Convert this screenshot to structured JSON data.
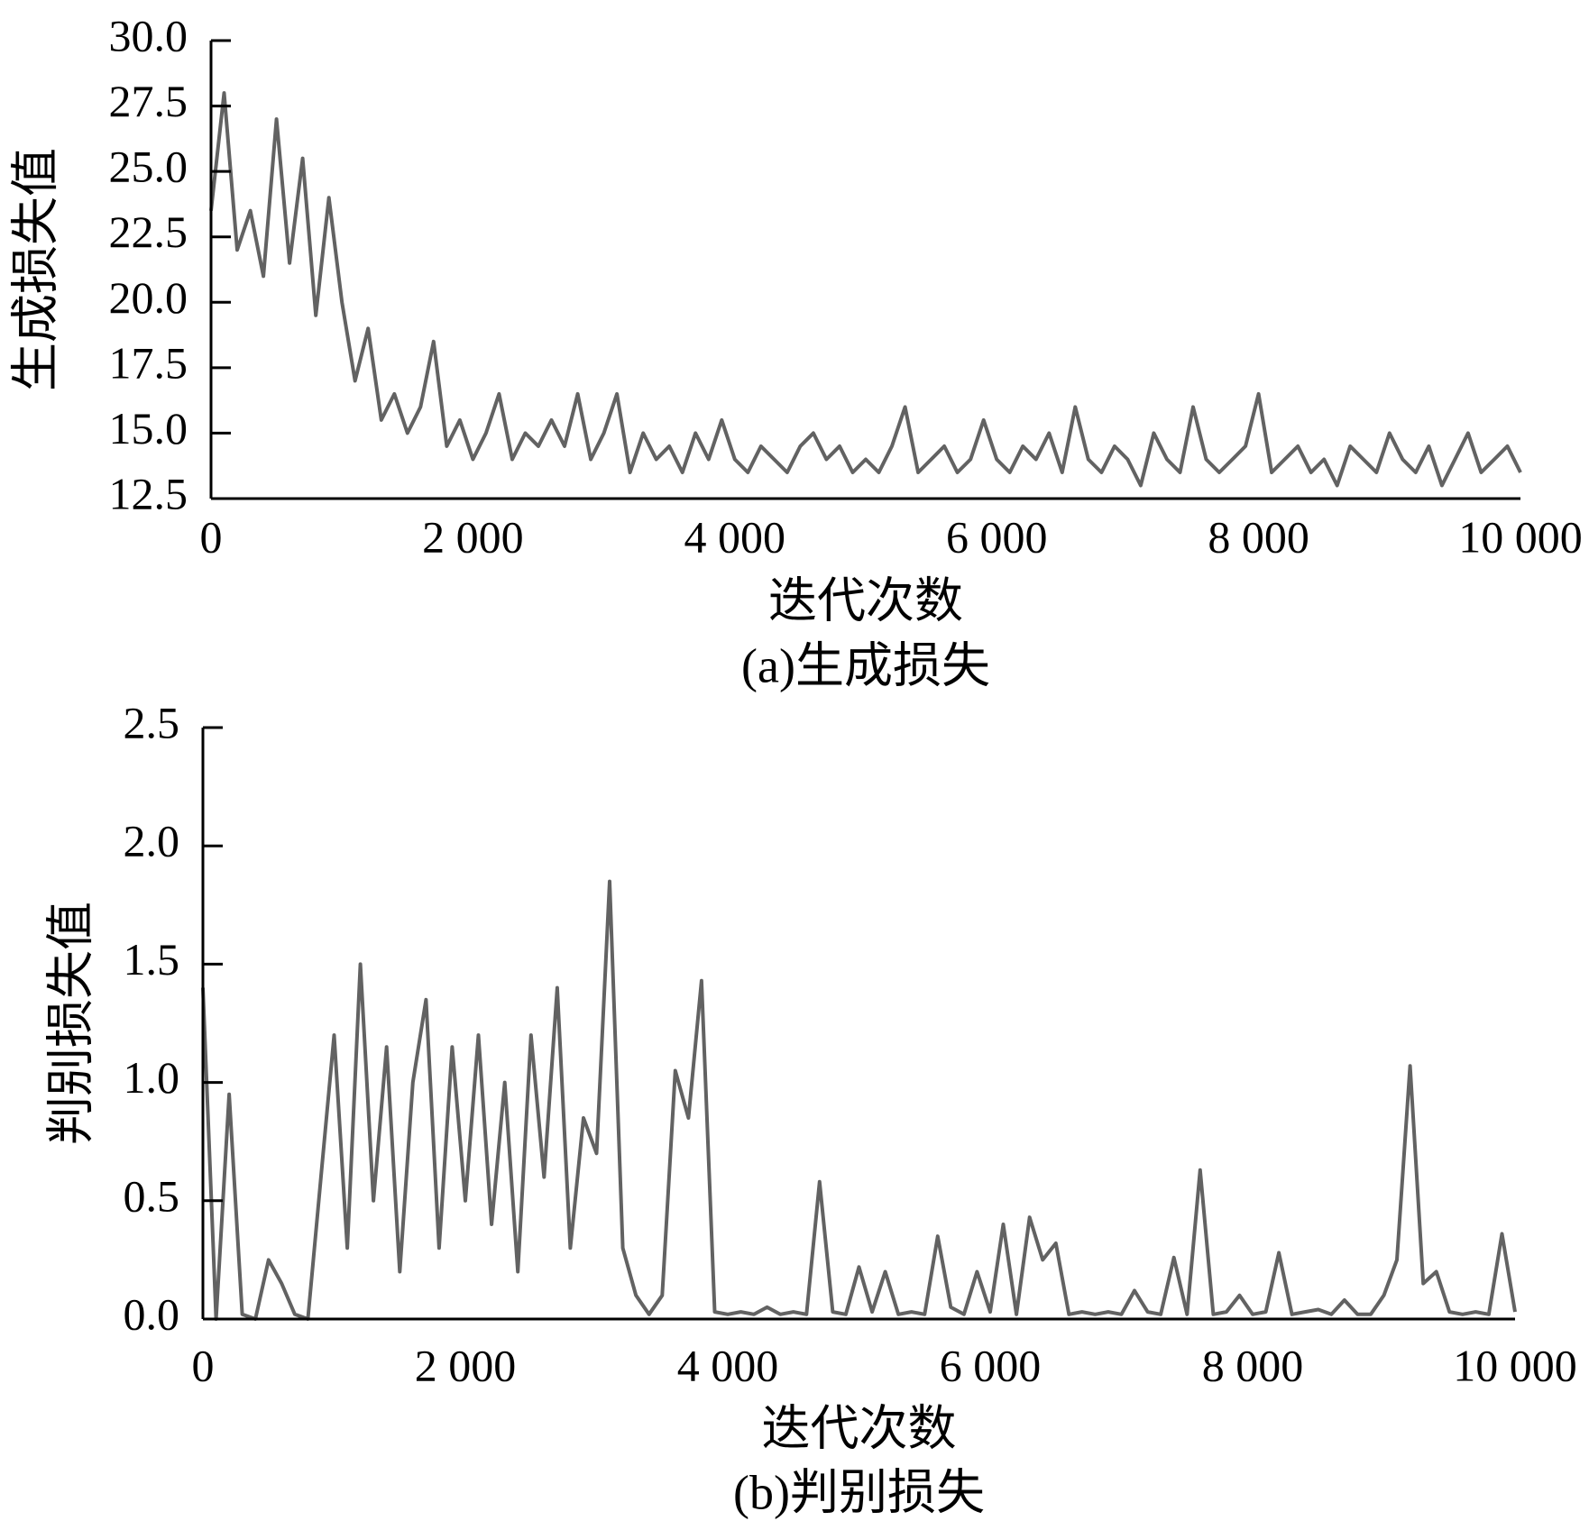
{
  "chart_data": [
    {
      "type": "line",
      "caption": "(a)生成损失",
      "xlabel": "迭代次数",
      "ylabel": "生成损失值",
      "x": [
        0,
        100,
        200,
        300,
        400,
        500,
        600,
        700,
        800,
        900,
        1000,
        1100,
        1200,
        1300,
        1400,
        1500,
        1600,
        1700,
        1800,
        1900,
        2000,
        2100,
        2200,
        2300,
        2400,
        2500,
        2600,
        2700,
        2800,
        2900,
        3000,
        3100,
        3200,
        3300,
        3400,
        3500,
        3600,
        3700,
        3800,
        3900,
        4000,
        4100,
        4200,
        4300,
        4400,
        4500,
        4600,
        4700,
        4800,
        4900,
        5000,
        5100,
        5200,
        5300,
        5400,
        5500,
        5600,
        5700,
        5800,
        5900,
        6000,
        6100,
        6200,
        6300,
        6400,
        6500,
        6600,
        6700,
        6800,
        6900,
        7000,
        7100,
        7200,
        7300,
        7400,
        7500,
        7600,
        7700,
        7800,
        7900,
        8000,
        8100,
        8200,
        8300,
        8400,
        8500,
        8600,
        8700,
        8800,
        8900,
        9000,
        9100,
        9200,
        9300,
        9400,
        9500,
        9600,
        9700,
        9800,
        9900,
        10000
      ],
      "series": [
        {
          "color": "#626262",
          "values": [
            23.5,
            28.0,
            22.0,
            23.5,
            21.0,
            27.0,
            21.5,
            25.5,
            19.5,
            24.0,
            20.0,
            17.0,
            19.0,
            15.5,
            16.5,
            15.0,
            16.0,
            18.5,
            14.5,
            15.5,
            14.0,
            15.0,
            16.5,
            14.0,
            15.0,
            14.5,
            15.5,
            14.5,
            16.5,
            14.0,
            15.0,
            16.5,
            13.5,
            15.0,
            14.0,
            14.5,
            13.5,
            15.0,
            14.0,
            15.5,
            14.0,
            13.5,
            14.5,
            14.0,
            13.5,
            14.5,
            15.0,
            14.0,
            14.5,
            13.5,
            14.0,
            13.5,
            14.5,
            16.0,
            13.5,
            14.0,
            14.5,
            13.5,
            14.0,
            15.5,
            14.0,
            13.5,
            14.5,
            14.0,
            15.0,
            13.5,
            16.0,
            14.0,
            13.5,
            14.5,
            14.0,
            13.0,
            15.0,
            14.0,
            13.5,
            16.0,
            14.0,
            13.5,
            14.0,
            14.5,
            16.5,
            13.5,
            14.0,
            14.5,
            13.5,
            14.0,
            13.0,
            14.5,
            14.0,
            13.5,
            15.0,
            14.0,
            13.5,
            14.5,
            13.0,
            14.0,
            15.0,
            13.5,
            14.0,
            14.5,
            13.5
          ]
        }
      ],
      "xlim": [
        0,
        10000
      ],
      "xticks": [
        0,
        {
          "value": 2000,
          "label": "2 000"
        },
        {
          "value": 4000,
          "label": "4 000"
        },
        {
          "value": 6000,
          "label": "6 000"
        },
        {
          "value": 8000,
          "label": "8 000"
        },
        {
          "value": 10000,
          "label": "10 000"
        }
      ],
      "ylim": [
        12.5,
        30
      ],
      "yticks": [
        12.5,
        {
          "value": 15,
          "label": "15.0"
        },
        17.5,
        {
          "value": 20,
          "label": "20.0"
        },
        22.5,
        {
          "value": 25,
          "label": "25.0"
        },
        27.5,
        {
          "value": 30,
          "label": "30.0"
        }
      ],
      "grid": false
    },
    {
      "type": "line",
      "caption": "(b)判别损失",
      "xlabel": "迭代次数",
      "ylabel": "判别损失值",
      "x": [
        0,
        100,
        200,
        300,
        400,
        500,
        600,
        700,
        800,
        900,
        1000,
        1100,
        1200,
        1300,
        1400,
        1500,
        1600,
        1700,
        1800,
        1900,
        2000,
        2100,
        2200,
        2300,
        2400,
        2500,
        2600,
        2700,
        2800,
        2900,
        3000,
        3100,
        3200,
        3300,
        3400,
        3500,
        3600,
        3700,
        3800,
        3900,
        4000,
        4100,
        4200,
        4300,
        4400,
        4500,
        4600,
        4700,
        4800,
        4900,
        5000,
        5100,
        5200,
        5300,
        5400,
        5500,
        5600,
        5700,
        5800,
        5900,
        6000,
        6100,
        6200,
        6300,
        6400,
        6500,
        6600,
        6700,
        6800,
        6900,
        7000,
        7100,
        7200,
        7300,
        7400,
        7500,
        7600,
        7700,
        7800,
        7900,
        8000,
        8100,
        8200,
        8300,
        8400,
        8500,
        8600,
        8700,
        8800,
        8900,
        9000,
        9100,
        9200,
        9300,
        9400,
        9500,
        9600,
        9700,
        9800,
        9900,
        10000
      ],
      "series": [
        {
          "color": "#626262",
          "values": [
            1.4,
            0.0,
            0.95,
            0.02,
            0.0,
            0.25,
            0.15,
            0.02,
            0.0,
            0.6,
            1.2,
            0.3,
            1.5,
            0.5,
            1.15,
            0.2,
            1.0,
            1.35,
            0.3,
            1.15,
            0.5,
            1.2,
            0.4,
            1.0,
            0.2,
            1.2,
            0.6,
            1.4,
            0.3,
            0.85,
            0.7,
            1.85,
            0.3,
            0.1,
            0.02,
            0.1,
            1.05,
            0.85,
            1.43,
            0.03,
            0.02,
            0.03,
            0.02,
            0.05,
            0.02,
            0.03,
            0.02,
            0.58,
            0.03,
            0.02,
            0.22,
            0.03,
            0.2,
            0.02,
            0.03,
            0.02,
            0.35,
            0.05,
            0.02,
            0.2,
            0.03,
            0.4,
            0.02,
            0.43,
            0.25,
            0.32,
            0.02,
            0.03,
            0.02,
            0.03,
            0.02,
            0.12,
            0.03,
            0.02,
            0.26,
            0.02,
            0.63,
            0.02,
            0.03,
            0.1,
            0.02,
            0.03,
            0.28,
            0.02,
            0.03,
            0.04,
            0.02,
            0.08,
            0.02,
            0.02,
            0.1,
            0.25,
            1.07,
            0.15,
            0.2,
            0.03,
            0.02,
            0.03,
            0.02,
            0.36,
            0.03
          ]
        }
      ],
      "xlim": [
        0,
        10000
      ],
      "xticks": [
        0,
        {
          "value": 2000,
          "label": "2 000"
        },
        {
          "value": 4000,
          "label": "4 000"
        },
        {
          "value": 6000,
          "label": "6 000"
        },
        {
          "value": 8000,
          "label": "8 000"
        },
        {
          "value": 10000,
          "label": "10 000"
        }
      ],
      "ylim": [
        0,
        2.5
      ],
      "yticks": [
        {
          "value": 0,
          "label": "0.0"
        },
        0.5,
        {
          "value": 1,
          "label": "1.0"
        },
        1.5,
        {
          "value": 2,
          "label": "2.0"
        },
        2.5
      ],
      "grid": false
    }
  ]
}
